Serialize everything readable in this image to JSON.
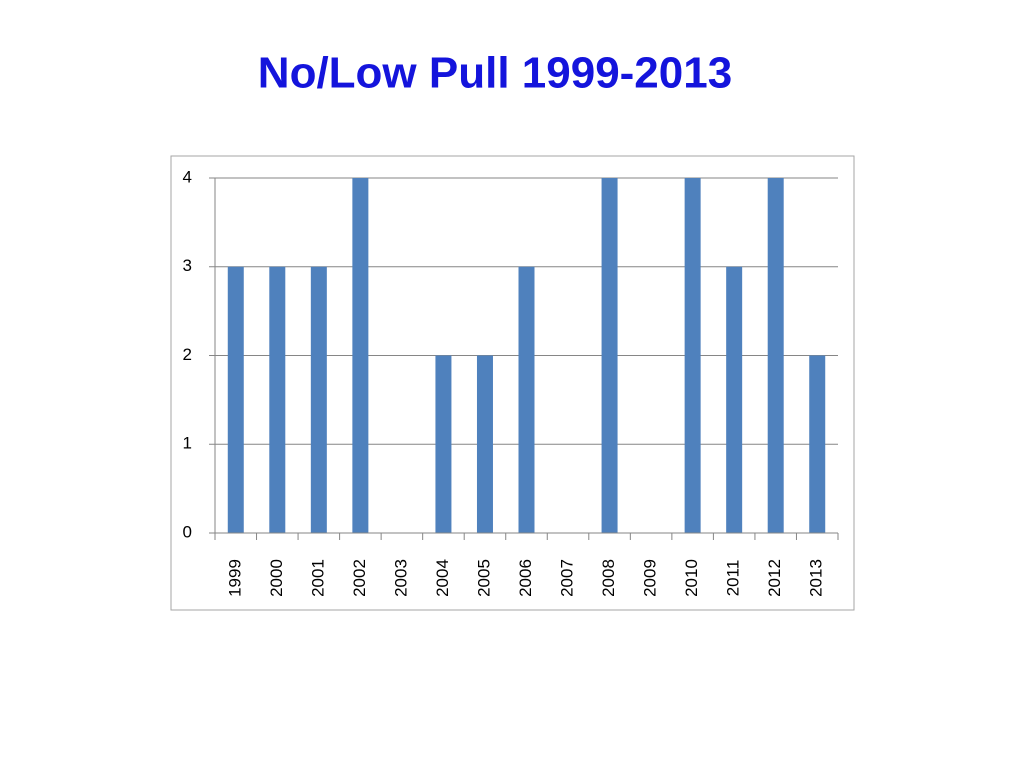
{
  "chart_data": {
    "type": "bar",
    "title": "No/Low Pull 1999-2013",
    "categories": [
      "1999",
      "2000",
      "2001",
      "2002",
      "2003",
      "2004",
      "2005",
      "2006",
      "2007",
      "2008",
      "2009",
      "2010",
      "2011",
      "2012",
      "2013"
    ],
    "values": [
      3,
      3,
      3,
      4,
      0,
      2,
      2,
      3,
      0,
      4,
      0,
      4,
      3,
      4,
      2
    ],
    "color": "#4f81bd",
    "ylim": [
      0,
      4
    ],
    "yticks": [
      0,
      1,
      2,
      3,
      4
    ],
    "grid": true
  }
}
